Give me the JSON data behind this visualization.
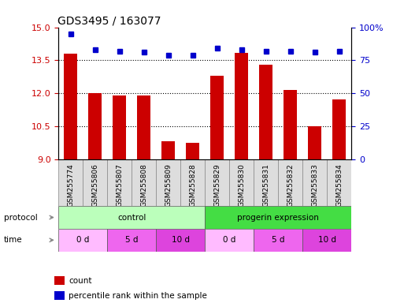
{
  "title": "GDS3495 / 163077",
  "samples": [
    "GSM255774",
    "GSM255806",
    "GSM255807",
    "GSM255808",
    "GSM255809",
    "GSM255828",
    "GSM255829",
    "GSM255830",
    "GSM255831",
    "GSM255832",
    "GSM255833",
    "GSM255834"
  ],
  "bar_values": [
    13.8,
    12.0,
    11.9,
    11.9,
    9.8,
    9.75,
    12.8,
    13.85,
    13.3,
    12.15,
    10.5,
    11.7
  ],
  "dot_values": [
    95,
    83,
    82,
    81,
    79,
    79,
    84,
    83,
    82,
    82,
    81,
    82
  ],
  "ylim_left": [
    9,
    15
  ],
  "ylim_right": [
    0,
    100
  ],
  "yticks_left": [
    9,
    10.5,
    12,
    13.5,
    15
  ],
  "yticks_right": [
    0,
    25,
    50,
    75,
    100
  ],
  "bar_color": "#cc0000",
  "dot_color": "#0000cc",
  "protocol_row": [
    {
      "label": "control",
      "start": 0,
      "end": 6,
      "color": "#bbffbb"
    },
    {
      "label": "progerin expression",
      "start": 6,
      "end": 12,
      "color": "#44dd44"
    }
  ],
  "time_row": [
    {
      "label": "0 d",
      "start": 0,
      "end": 2,
      "color": "#ffbbff"
    },
    {
      "label": "5 d",
      "start": 2,
      "end": 4,
      "color": "#ee66ee"
    },
    {
      "label": "10 d",
      "start": 4,
      "end": 6,
      "color": "#dd44dd"
    },
    {
      "label": "0 d",
      "start": 6,
      "end": 8,
      "color": "#ffbbff"
    },
    {
      "label": "5 d",
      "start": 8,
      "end": 10,
      "color": "#ee66ee"
    },
    {
      "label": "10 d",
      "start": 10,
      "end": 12,
      "color": "#dd44dd"
    }
  ],
  "legend_items": [
    {
      "label": "count",
      "color": "#cc0000"
    },
    {
      "label": "percentile rank within the sample",
      "color": "#0000cc"
    }
  ],
  "left_axis_color": "#cc0000",
  "right_axis_color": "#0000cc",
  "tick_label_fontsize": 8,
  "title_fontsize": 10,
  "sample_box_color": "#dddddd",
  "sample_box_edge": "#888888"
}
